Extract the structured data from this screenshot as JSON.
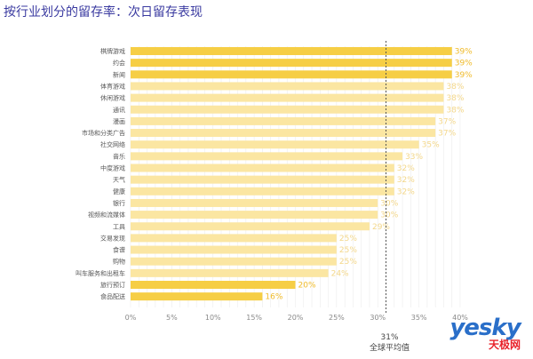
{
  "title": "按行业划分的留存率：次日留存表现",
  "chart_data": {
    "type": "bar",
    "orientation": "horizontal",
    "title": "按行业划分的留存率：次日留存表现",
    "categories": [
      "棋牌游戏",
      "约会",
      "新闻",
      "体育游戏",
      "休闲游戏",
      "通讯",
      "漫画",
      "市场和分类广告",
      "社交网络",
      "音乐",
      "中度游戏",
      "天气",
      "健康",
      "银行",
      "视频和流媒体",
      "工具",
      "交易发现",
      "食谱",
      "购物",
      "叫车服务和出租车",
      "旅行预订",
      "食品配送"
    ],
    "values": [
      39,
      39,
      39,
      38,
      38,
      38,
      37,
      37,
      35,
      33,
      32,
      32,
      32,
      30,
      30,
      29,
      25,
      25,
      25,
      24,
      20,
      16
    ],
    "value_labels": [
      "39%",
      "39%",
      "39%",
      "38%",
      "38%",
      "38%",
      "37%",
      "37%",
      "35%",
      "33%",
      "32%",
      "32%",
      "32%",
      "30%",
      "30%",
      "29%",
      "25%",
      "25%",
      "25%",
      "24%",
      "20%",
      "16%"
    ],
    "highlighted": [
      true,
      true,
      true,
      false,
      false,
      false,
      false,
      false,
      false,
      false,
      false,
      false,
      false,
      false,
      false,
      false,
      false,
      false,
      false,
      false,
      true,
      true
    ],
    "xlim": [
      0,
      40
    ],
    "xticks": [
      0,
      5,
      10,
      15,
      20,
      25,
      30,
      35,
      40
    ],
    "xtick_labels": [
      "0%",
      "5%",
      "10%",
      "15%",
      "20%",
      "25%",
      "30%",
      "35%",
      "40%"
    ],
    "average": {
      "value": 31,
      "label_value": "31%",
      "label_text": "全球平均值"
    },
    "grid": true,
    "colors": {
      "highlight": "#f6ce45",
      "normal": "#fbe6a2",
      "highlight_label": "#f0bb2a",
      "normal_label": "#f3d78a",
      "grid": "#ececec",
      "average_line": "#555555"
    }
  },
  "watermark": {
    "text": "yesky",
    "sub": "天极网"
  }
}
